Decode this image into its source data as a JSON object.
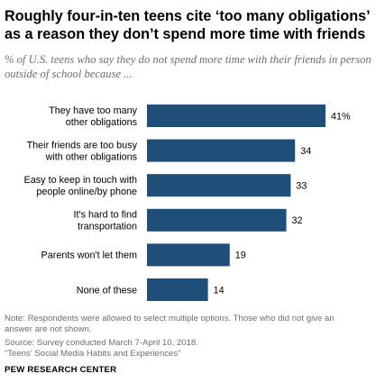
{
  "header": {
    "title": "Roughly four-in-ten teens cite ‘too many obligations’ as a reason they don’t spend more time with friends",
    "subtitle": "% of U.S. teens who say they do not spend more time with their friends in person outside of school because ..."
  },
  "chart_data": {
    "type": "bar",
    "orientation": "horizontal",
    "title": "Roughly four-in-ten teens cite ‘too many obligations’ as a reason they don’t spend more time with friends",
    "subtitle": "% of U.S. teens who say they do not spend more time with their friends in person outside of school because ...",
    "categories": [
      [
        "They have too many",
        "other obligations"
      ],
      [
        "Their friends are too busy",
        "with other obligations"
      ],
      [
        "Easy to keep in touch with",
        "people online/by phone"
      ],
      [
        "It's hard to find",
        "transportation"
      ],
      [
        "Parents won't let them"
      ],
      [
        "None of these"
      ]
    ],
    "values": [
      41,
      34,
      33,
      32,
      19,
      14
    ],
    "value_labels": [
      "41%",
      "34",
      "33",
      "32",
      "19",
      "14"
    ],
    "xlim": [
      0,
      41
    ],
    "grid": false,
    "bar_color": "#1f4e79",
    "label_color": "#000000"
  },
  "footer": {
    "note_line1": "Note: Respondents were allowed to select multiple options. Those who did not give an",
    "note_line2": "answer are not shown.",
    "source": "Source: Survey conducted March 7-April 10, 2018.",
    "report": "“Teens’ Social Media Habits and Experiences”",
    "brand": "PEW RESEARCH CENTER"
  }
}
